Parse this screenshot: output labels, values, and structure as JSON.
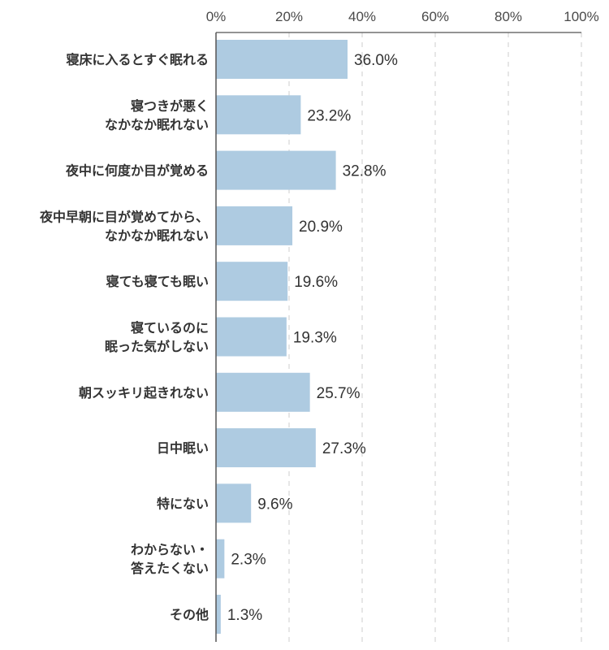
{
  "chart_data": {
    "type": "bar",
    "orientation": "horizontal",
    "categories": [
      [
        "寝床に入るとすぐ眠れる"
      ],
      [
        "寝つきが悪く",
        "なかなか眠れない"
      ],
      [
        "夜中に何度か目が覚める"
      ],
      [
        "夜中早朝に目が覚めてから、",
        "なかなか眠れない"
      ],
      [
        "寝ても寝ても眠い"
      ],
      [
        "寝ているのに",
        "眠った気がしない"
      ],
      [
        "朝スッキリ起きれない"
      ],
      [
        "日中眠い"
      ],
      [
        "特にない"
      ],
      [
        "わからない・",
        "答えたくない"
      ],
      [
        "その他"
      ]
    ],
    "values": [
      36.0,
      23.2,
      32.8,
      20.9,
      19.6,
      19.3,
      25.7,
      27.3,
      9.6,
      2.3,
      1.3
    ],
    "value_labels": [
      "36.0%",
      "23.2%",
      "32.8%",
      "20.9%",
      "19.6%",
      "19.3%",
      "25.7%",
      "27.3%",
      "9.6%",
      "2.3%",
      "1.3%"
    ],
    "xlim": [
      0,
      100
    ],
    "x_ticks": [
      "0%",
      "20%",
      "40%",
      "60%",
      "80%",
      "100%"
    ],
    "axis_position": "top",
    "grid": true,
    "colors": {
      "bar": "#aecbe1",
      "axis": "#555555",
      "grid": "#cccccc",
      "text": "#333333"
    }
  }
}
